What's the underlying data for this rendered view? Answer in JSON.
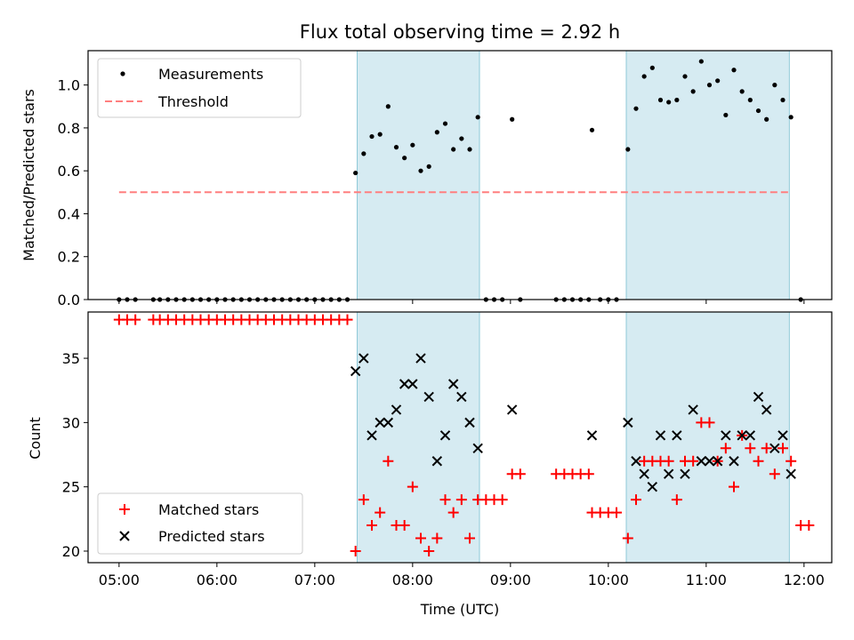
{
  "chart_data": [
    {
      "type": "scatter",
      "title": "Flux total observing time = 2.92 h",
      "xlabel": "",
      "ylabel": "Matched/Predicted stars",
      "xlim": [
        "04:41",
        "12:17"
      ],
      "ylim": [
        0,
        1.16
      ],
      "xticks": [
        "05:00",
        "06:00",
        "07:00",
        "08:00",
        "09:00",
        "10:00",
        "11:00",
        "12:00"
      ],
      "yticks": [
        "0.0",
        "0.2",
        "0.4",
        "0.6",
        "0.8",
        "1.0"
      ],
      "legend_position": "top-left",
      "shaded_intervals": [
        [
          "07:26",
          "08:41"
        ],
        [
          "10:11",
          "11:51"
        ]
      ],
      "series": [
        {
          "name": "Measurements",
          "marker": "dot",
          "color": "#000000",
          "points": [
            [
              "05:00",
              0.0
            ],
            [
              "05:05",
              0.0
            ],
            [
              "05:10",
              0.0
            ],
            [
              "05:21",
              0.0
            ],
            [
              "05:25",
              0.0
            ],
            [
              "05:30",
              0.0
            ],
            [
              "05:35",
              0.0
            ],
            [
              "05:40",
              0.0
            ],
            [
              "05:45",
              0.0
            ],
            [
              "05:50",
              0.0
            ],
            [
              "05:55",
              0.0
            ],
            [
              "06:00",
              0.0
            ],
            [
              "06:05",
              0.0
            ],
            [
              "06:10",
              0.0
            ],
            [
              "06:15",
              0.0
            ],
            [
              "06:20",
              0.0
            ],
            [
              "06:25",
              0.0
            ],
            [
              "06:30",
              0.0
            ],
            [
              "06:35",
              0.0
            ],
            [
              "06:40",
              0.0
            ],
            [
              "06:45",
              0.0
            ],
            [
              "06:50",
              0.0
            ],
            [
              "06:55",
              0.0
            ],
            [
              "07:00",
              0.0
            ],
            [
              "07:05",
              0.0
            ],
            [
              "07:10",
              0.0
            ],
            [
              "07:15",
              0.0
            ],
            [
              "07:20",
              0.0
            ],
            [
              "07:25",
              0.59
            ],
            [
              "07:30",
              0.68
            ],
            [
              "07:35",
              0.76
            ],
            [
              "07:40",
              0.77
            ],
            [
              "07:45",
              0.9
            ],
            [
              "07:50",
              0.71
            ],
            [
              "07:55",
              0.66
            ],
            [
              "08:00",
              0.72
            ],
            [
              "08:05",
              0.6
            ],
            [
              "08:10",
              0.62
            ],
            [
              "08:15",
              0.78
            ],
            [
              "08:20",
              0.82
            ],
            [
              "08:25",
              0.7
            ],
            [
              "08:30",
              0.75
            ],
            [
              "08:35",
              0.7
            ],
            [
              "08:40",
              0.85
            ],
            [
              "08:45",
              0.0
            ],
            [
              "08:50",
              0.0
            ],
            [
              "08:55",
              0.0
            ],
            [
              "09:01",
              0.84
            ],
            [
              "09:06",
              0.0
            ],
            [
              "09:28",
              0.0
            ],
            [
              "09:33",
              0.0
            ],
            [
              "09:38",
              0.0
            ],
            [
              "09:43",
              0.0
            ],
            [
              "09:48",
              0.0
            ],
            [
              "09:50",
              0.79
            ],
            [
              "09:55",
              0.0
            ],
            [
              "10:00",
              0.0
            ],
            [
              "10:05",
              0.0
            ],
            [
              "10:12",
              0.7
            ],
            [
              "10:17",
              0.89
            ],
            [
              "10:22",
              1.04
            ],
            [
              "10:27",
              1.08
            ],
            [
              "10:32",
              0.93
            ],
            [
              "10:37",
              0.92
            ],
            [
              "10:42",
              0.93
            ],
            [
              "10:47",
              1.04
            ],
            [
              "10:52",
              0.97
            ],
            [
              "10:57",
              1.11
            ],
            [
              "11:02",
              1.0
            ],
            [
              "11:07",
              1.02
            ],
            [
              "11:12",
              0.86
            ],
            [
              "11:17",
              1.07
            ],
            [
              "11:22",
              0.97
            ],
            [
              "11:27",
              0.93
            ],
            [
              "11:32",
              0.88
            ],
            [
              "11:37",
              0.84
            ],
            [
              "11:42",
              1.0
            ],
            [
              "11:47",
              0.93
            ],
            [
              "11:52",
              0.85
            ],
            [
              "11:58",
              0.0
            ]
          ]
        },
        {
          "name": "Threshold",
          "type": "line",
          "style": "dashed",
          "color": "#ff7f7f",
          "x": [
            "05:00",
            "11:52"
          ],
          "values": [
            0.5,
            0.5
          ]
        }
      ]
    },
    {
      "type": "scatter",
      "title": "",
      "xlabel": "Time (UTC)",
      "ylabel": "Count",
      "xlim": [
        "04:41",
        "12:17"
      ],
      "ylim": [
        19.1,
        38.6
      ],
      "xticks": [
        "05:00",
        "06:00",
        "07:00",
        "08:00",
        "09:00",
        "10:00",
        "11:00",
        "12:00"
      ],
      "yticks": [
        "20",
        "25",
        "30",
        "35"
      ],
      "legend_position": "bottom-left",
      "shaded_intervals": [
        [
          "07:26",
          "08:41"
        ],
        [
          "10:11",
          "11:51"
        ]
      ],
      "series": [
        {
          "name": "Matched stars",
          "marker": "plus",
          "color": "#ff0000",
          "points": [
            [
              "05:00",
              38
            ],
            [
              "05:05",
              38
            ],
            [
              "05:10",
              38
            ],
            [
              "05:21",
              38
            ],
            [
              "05:25",
              38
            ],
            [
              "05:30",
              38
            ],
            [
              "05:35",
              38
            ],
            [
              "05:40",
              38
            ],
            [
              "05:45",
              38
            ],
            [
              "05:50",
              38
            ],
            [
              "05:55",
              38
            ],
            [
              "06:00",
              38
            ],
            [
              "06:05",
              38
            ],
            [
              "06:10",
              38
            ],
            [
              "06:15",
              38
            ],
            [
              "06:20",
              38
            ],
            [
              "06:25",
              38
            ],
            [
              "06:30",
              38
            ],
            [
              "06:35",
              38
            ],
            [
              "06:40",
              38
            ],
            [
              "06:45",
              38
            ],
            [
              "06:50",
              38
            ],
            [
              "06:55",
              38
            ],
            [
              "07:00",
              38
            ],
            [
              "07:05",
              38
            ],
            [
              "07:10",
              38
            ],
            [
              "07:15",
              38
            ],
            [
              "07:20",
              38
            ],
            [
              "07:25",
              20
            ],
            [
              "07:30",
              24
            ],
            [
              "07:35",
              22
            ],
            [
              "07:40",
              23
            ],
            [
              "07:45",
              27
            ],
            [
              "07:50",
              22
            ],
            [
              "07:55",
              22
            ],
            [
              "08:00",
              25
            ],
            [
              "08:05",
              21
            ],
            [
              "08:10",
              20
            ],
            [
              "08:15",
              21
            ],
            [
              "08:20",
              24
            ],
            [
              "08:25",
              23
            ],
            [
              "08:30",
              24
            ],
            [
              "08:35",
              21
            ],
            [
              "08:40",
              24
            ],
            [
              "08:45",
              24
            ],
            [
              "08:50",
              24
            ],
            [
              "08:55",
              24
            ],
            [
              "09:01",
              26
            ],
            [
              "09:06",
              26
            ],
            [
              "09:28",
              26
            ],
            [
              "09:33",
              26
            ],
            [
              "09:38",
              26
            ],
            [
              "09:43",
              26
            ],
            [
              "09:48",
              26
            ],
            [
              "09:50",
              23
            ],
            [
              "09:55",
              23
            ],
            [
              "10:00",
              23
            ],
            [
              "10:05",
              23
            ],
            [
              "10:12",
              21
            ],
            [
              "10:17",
              24
            ],
            [
              "10:22",
              27
            ],
            [
              "10:27",
              27
            ],
            [
              "10:32",
              27
            ],
            [
              "10:37",
              27
            ],
            [
              "10:42",
              24
            ],
            [
              "10:47",
              27
            ],
            [
              "10:52",
              27
            ],
            [
              "10:57",
              30
            ],
            [
              "11:02",
              30
            ],
            [
              "11:07",
              27
            ],
            [
              "11:12",
              28
            ],
            [
              "11:17",
              25
            ],
            [
              "11:22",
              29
            ],
            [
              "11:27",
              28
            ],
            [
              "11:32",
              27
            ],
            [
              "11:37",
              28
            ],
            [
              "11:42",
              26
            ],
            [
              "11:47",
              28
            ],
            [
              "11:52",
              27
            ],
            [
              "11:58",
              22
            ],
            [
              "12:03",
              22
            ]
          ]
        },
        {
          "name": "Predicted stars",
          "marker": "x",
          "color": "#000000",
          "points": [
            [
              "07:25",
              34
            ],
            [
              "07:30",
              35
            ],
            [
              "07:35",
              29
            ],
            [
              "07:40",
              30
            ],
            [
              "07:45",
              30
            ],
            [
              "07:50",
              31
            ],
            [
              "07:55",
              33
            ],
            [
              "08:00",
              33
            ],
            [
              "08:05",
              35
            ],
            [
              "08:10",
              32
            ],
            [
              "08:15",
              27
            ],
            [
              "08:20",
              29
            ],
            [
              "08:25",
              33
            ],
            [
              "08:30",
              32
            ],
            [
              "08:35",
              30
            ],
            [
              "08:40",
              28
            ],
            [
              "09:01",
              31
            ],
            [
              "09:50",
              29
            ],
            [
              "10:12",
              30
            ],
            [
              "10:17",
              27
            ],
            [
              "10:22",
              26
            ],
            [
              "10:27",
              25
            ],
            [
              "10:32",
              29
            ],
            [
              "10:37",
              26
            ],
            [
              "10:42",
              29
            ],
            [
              "10:47",
              26
            ],
            [
              "10:52",
              31
            ],
            [
              "10:57",
              27
            ],
            [
              "11:02",
              27
            ],
            [
              "11:07",
              27
            ],
            [
              "11:12",
              29
            ],
            [
              "11:17",
              27
            ],
            [
              "11:22",
              29
            ],
            [
              "11:27",
              29
            ],
            [
              "11:32",
              32
            ],
            [
              "11:37",
              31
            ],
            [
              "11:42",
              28
            ],
            [
              "11:47",
              29
            ],
            [
              "11:52",
              26
            ]
          ]
        }
      ]
    }
  ]
}
